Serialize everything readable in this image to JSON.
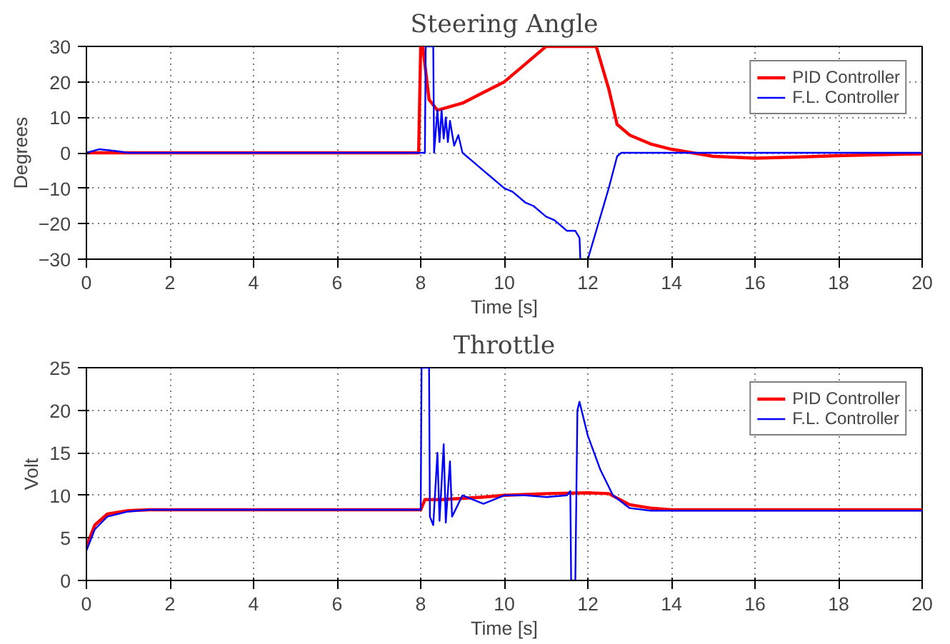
{
  "chart_data": [
    {
      "type": "line",
      "title": "Steering Angle",
      "xlabel": "Time [s]",
      "ylabel": "Degrees",
      "xlim": [
        0,
        20
      ],
      "ylim": [
        -30,
        30
      ],
      "xticks": [
        0,
        2,
        4,
        6,
        8,
        10,
        12,
        14,
        16,
        18,
        20
      ],
      "yticks": [
        -30,
        -20,
        -10,
        0,
        10,
        20,
        30
      ],
      "grid": true,
      "legend": "top right",
      "line_style": "solid",
      "marker": "none",
      "series": [
        {
          "name": "PID Controller",
          "color": "#ff0000",
          "x": [
            0,
            2,
            4,
            6,
            7.95,
            8.0,
            8.05,
            8.2,
            8.4,
            9,
            9.5,
            10,
            10.5,
            11,
            12.2,
            12.5,
            12.7,
            13,
            13.5,
            14,
            14.5,
            15,
            16,
            17,
            18,
            20
          ],
          "values": [
            0,
            0,
            0,
            0,
            0,
            30,
            30,
            15,
            12,
            14,
            17,
            20,
            25,
            30,
            30,
            18,
            8,
            5,
            2.5,
            1,
            0,
            -1,
            -1.5,
            -1.2,
            -0.8,
            -0.3
          ]
        },
        {
          "name": "F.L. Controller",
          "color": "#0000ff",
          "x": [
            0,
            0.3,
            0.7,
            1,
            2,
            4,
            6,
            8,
            8.1,
            8.12,
            8.3,
            8.32,
            8.4,
            8.45,
            8.5,
            8.55,
            8.6,
            8.65,
            8.7,
            8.8,
            8.9,
            9,
            9.2,
            9.5,
            9.7,
            10,
            10.2,
            10.5,
            10.7,
            11,
            11.2,
            11.5,
            11.7,
            11.8,
            11.82,
            12.0,
            12.2,
            12.5,
            12.7,
            12.8,
            14,
            16,
            18,
            20
          ],
          "values": [
            0,
            1,
            0.5,
            0,
            0,
            0,
            0,
            0,
            0,
            30,
            30,
            0,
            12,
            3,
            12,
            4,
            10,
            3,
            9,
            2,
            5,
            0,
            -2,
            -5,
            -7,
            -10,
            -11,
            -14,
            -15,
            -18,
            -19,
            -22,
            -22,
            -24,
            -30,
            -30,
            -22,
            -10,
            -1,
            0,
            0,
            0,
            0,
            0
          ]
        }
      ]
    },
    {
      "type": "line",
      "title": "Throttle",
      "xlabel": "Time [s]",
      "ylabel": "Volt",
      "xlim": [
        0,
        20
      ],
      "ylim": [
        0,
        25
      ],
      "xticks": [
        0,
        2,
        4,
        6,
        8,
        10,
        12,
        14,
        16,
        18,
        20
      ],
      "yticks": [
        0,
        5,
        10,
        15,
        20,
        25
      ],
      "grid": true,
      "legend": "top right",
      "line_style": "solid",
      "marker": "none",
      "series": [
        {
          "name": "PID Controller",
          "color": "#ff0000",
          "x": [
            0,
            0.2,
            0.5,
            1,
            1.5,
            4,
            8.0,
            8.1,
            8.5,
            9.5,
            10,
            11,
            12,
            12.5,
            13,
            13.5,
            14,
            16,
            20
          ],
          "values": [
            4,
            6.5,
            7.8,
            8.2,
            8.3,
            8.3,
            8.3,
            9.5,
            9.5,
            9.8,
            10,
            10.2,
            10.3,
            10.2,
            8.9,
            8.5,
            8.3,
            8.3,
            8.3
          ]
        },
        {
          "name": "F.L. Controller",
          "color": "#0000ff",
          "x": [
            0,
            0.2,
            0.5,
            1,
            1.5,
            4,
            8.0,
            8.02,
            8.2,
            8.22,
            8.3,
            8.4,
            8.45,
            8.55,
            8.6,
            8.7,
            8.75,
            8.8,
            9,
            9.5,
            10,
            10.5,
            11,
            11.5,
            11.58,
            11.6,
            11.7,
            11.75,
            11.8,
            12,
            12.3,
            12.6,
            13,
            13.5,
            16,
            20
          ],
          "values": [
            3.5,
            6,
            7.5,
            8.1,
            8.3,
            8.3,
            8.3,
            25,
            25,
            7.5,
            6.5,
            15,
            7,
            16,
            6.8,
            14,
            7.5,
            8,
            10,
            9,
            10,
            10,
            9.8,
            10,
            10.5,
            0,
            0,
            20,
            21,
            17,
            13,
            10,
            8.5,
            8.2,
            8.2,
            8.2
          ]
        }
      ]
    }
  ]
}
